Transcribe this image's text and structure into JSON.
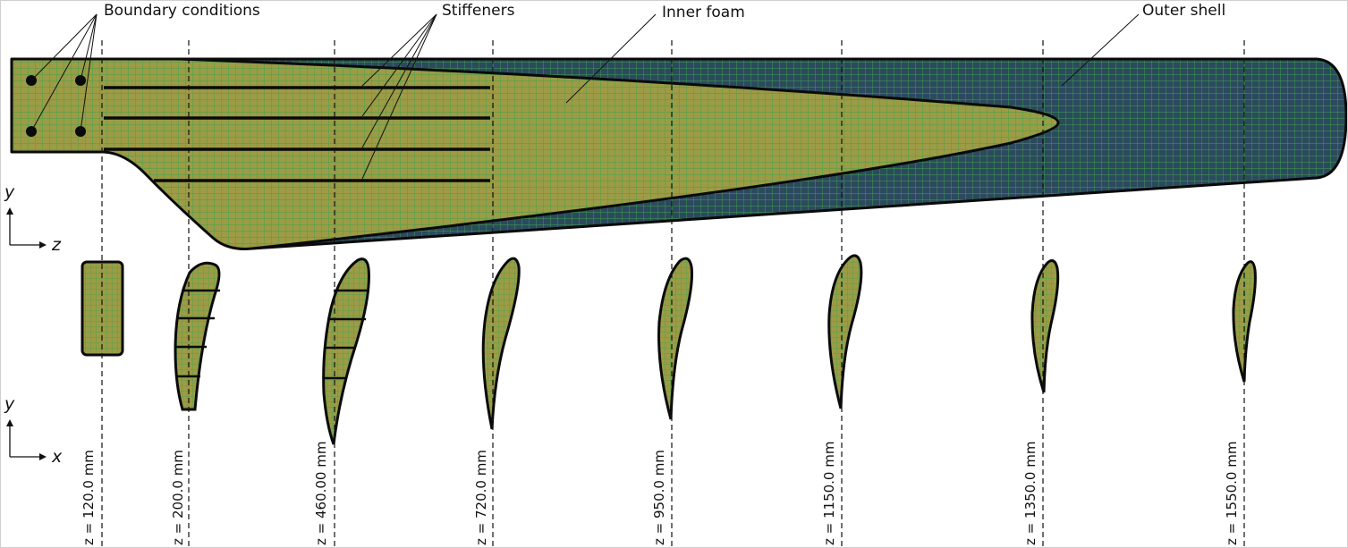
{
  "labels": {
    "boundary_conditions": "Boundary conditions",
    "stiffeners": "Stiffeners",
    "inner_foam": "Inner foam",
    "outer_shell": "Outer shell"
  },
  "axes_top": {
    "vertical": "y",
    "horizontal": "z"
  },
  "axes_bottom": {
    "vertical": "y",
    "horizontal": "x"
  },
  "sections": [
    {
      "label": "z = 120.0 mm"
    },
    {
      "label": "z = 200.0 mm"
    },
    {
      "label": "z = 460.00 mm"
    },
    {
      "label": "z = 720.0 mm"
    },
    {
      "label": "z = 950.0 mm"
    },
    {
      "label": "z = 1150.0 mm"
    },
    {
      "label": "z = 1350.0 mm"
    },
    {
      "label": "z = 1550.0 mm"
    }
  ],
  "colors": {
    "outer_shell": "#2c4a5e",
    "inner_foam": "#9c9b46",
    "mesh": "#3ea34a",
    "outline": "#0a0a0a"
  }
}
